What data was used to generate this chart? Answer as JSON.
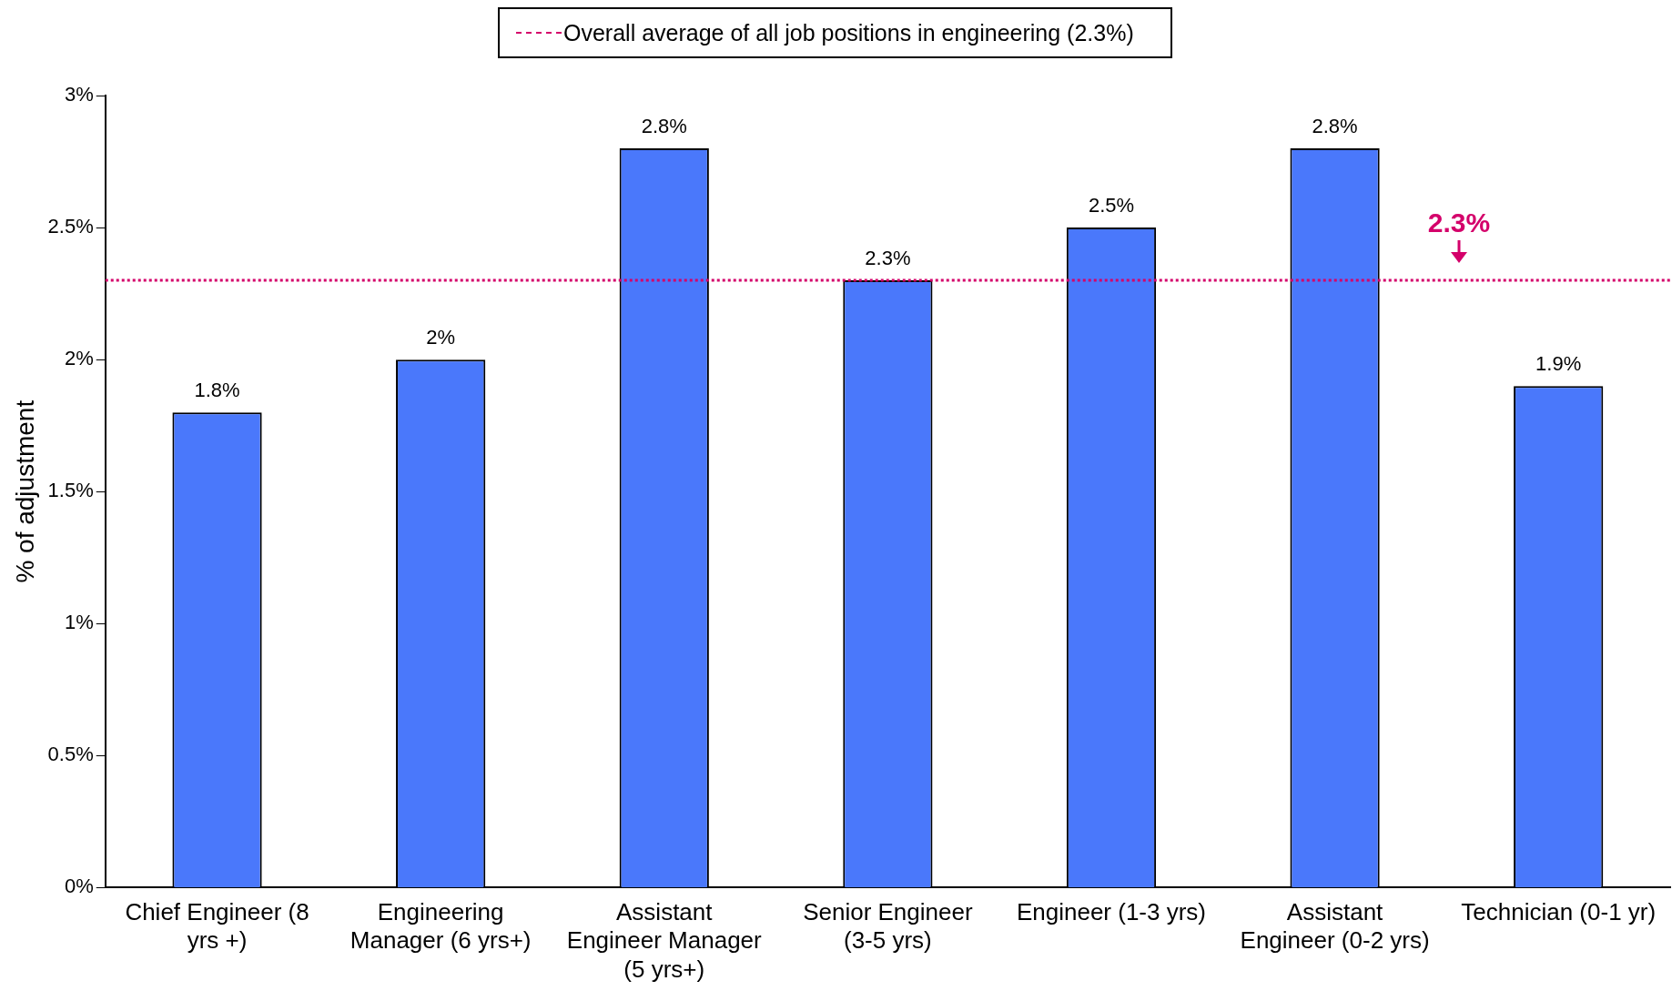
{
  "chart_data": {
    "type": "bar",
    "ylabel": "% of adjustment",
    "categories": [
      "Chief Engineer (8 yrs +)",
      "Engineering Manager (6 yrs+)",
      "Assistant Engineer Manager (5 yrs+)",
      "Senior Engineer (3-5 yrs)",
      "Engineer (1-3 yrs)",
      "Assistant Engineer (0-2 yrs)",
      "Technician (0-1 yr)"
    ],
    "values": [
      1.8,
      2,
      2.8,
      2.3,
      2.5,
      2.8,
      1.9
    ],
    "value_labels": [
      "1.8%",
      "2%",
      "2.8%",
      "2.3%",
      "2.5%",
      "2.8%",
      "1.9%"
    ],
    "color": "#4a78fb",
    "ylim": [
      0,
      3
    ],
    "yticks": [
      {
        "value": 0,
        "label": "0%"
      },
      {
        "value": 0.5,
        "label": "0.5%"
      },
      {
        "value": 1,
        "label": "1%"
      },
      {
        "value": 1.5,
        "label": "1.5%"
      },
      {
        "value": 2,
        "label": "2%"
      },
      {
        "value": 2.5,
        "label": "2.5%"
      },
      {
        "value": 3,
        "label": "3%"
      }
    ],
    "grid": false,
    "legend": "top",
    "ref_lines": [
      {
        "axis": "y",
        "value": 2.3,
        "label": "Overall average of all job positions in engineering (2.3%)",
        "color": "#d4006a",
        "line_style": "dotted"
      }
    ],
    "annotations": [
      {
        "text": "2.3%",
        "y": 2.3
      }
    ]
  }
}
